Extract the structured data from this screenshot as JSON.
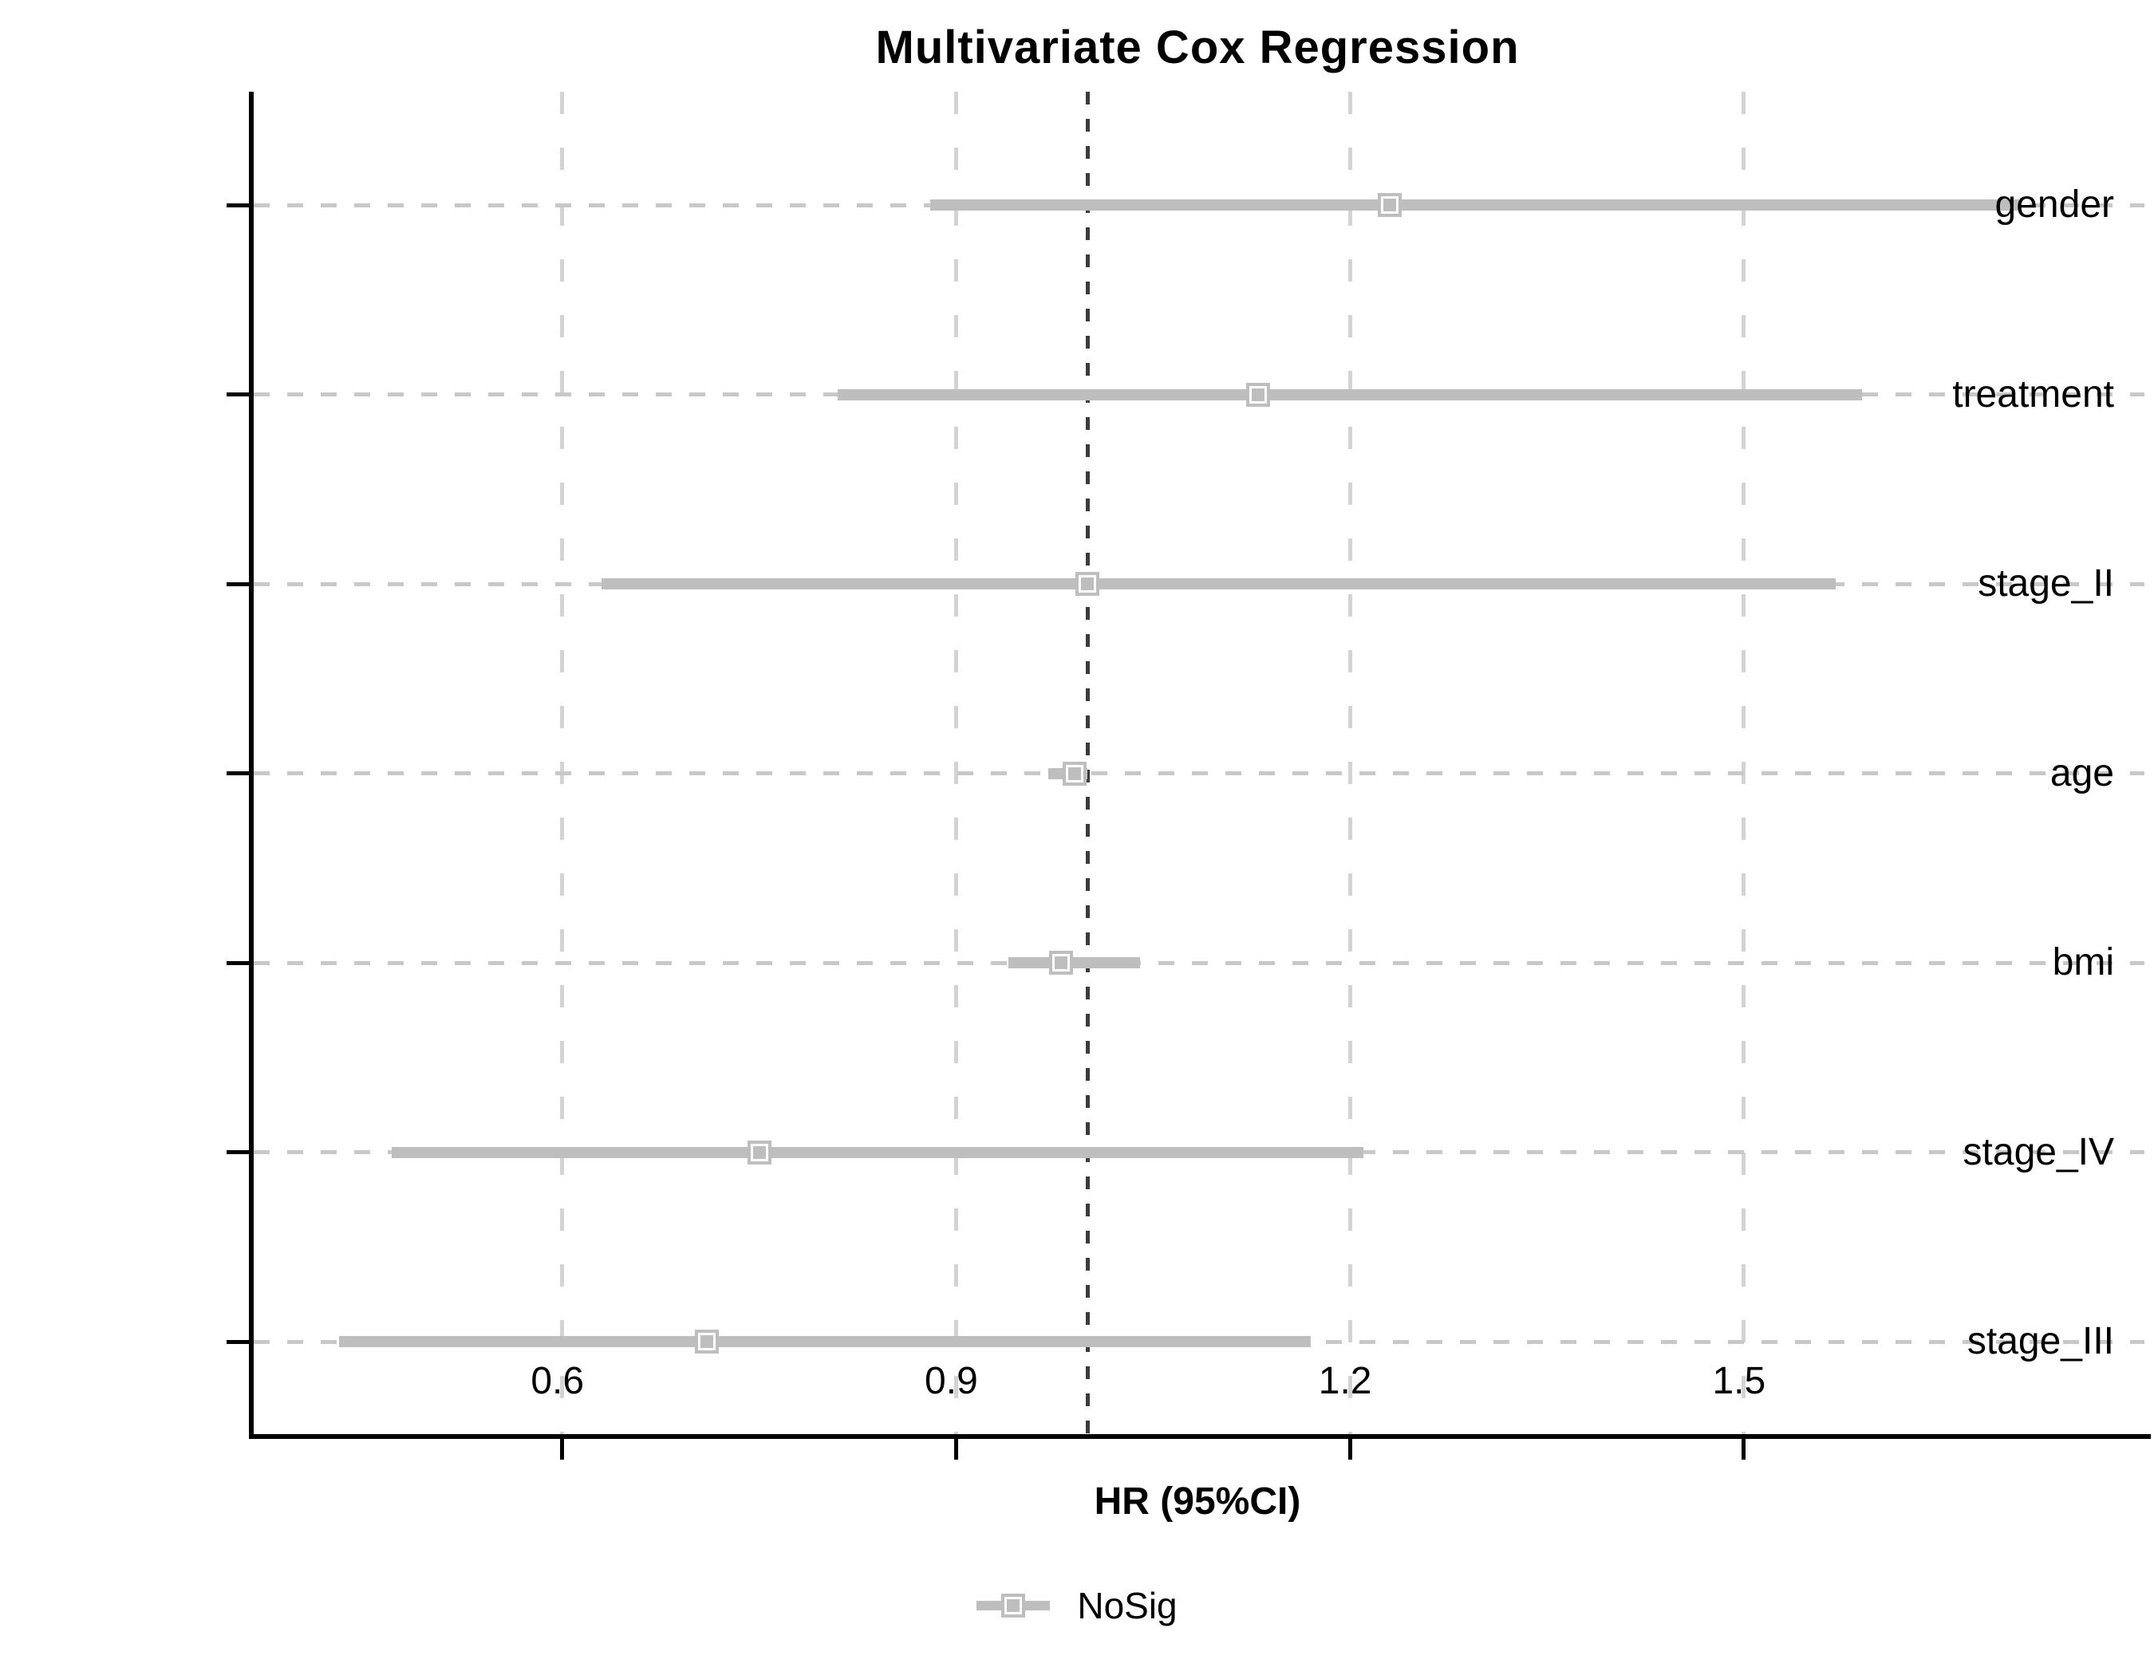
{
  "figure": {
    "title": "Multivariate Cox Regression",
    "x_axis_label": "HR (95%CI)",
    "legend": {
      "label": "NoSig"
    }
  },
  "colors": {
    "estimate_gray": "#bebebe",
    "marker_inner_ring": "#ffffff",
    "row_gridline": "#c8c8c8",
    "tick_gridline": "#d3d3d3",
    "reference_line": "#3c3c3c",
    "axis": "#000000",
    "background": "#ffffff"
  },
  "chart_data": {
    "type": "scatter",
    "variant": "forest_plot",
    "title": "Multivariate Cox Regression",
    "xlabel": "HR (95%CI)",
    "ylabel": "",
    "xlim": [
      0.365,
      1.81
    ],
    "x_ticks": [
      0.6,
      0.9,
      1.2,
      1.5
    ],
    "reference_line": 1.0,
    "grid": "dashed",
    "legend_position": "bottom",
    "categories": [
      "gender",
      "treatment",
      "stage_II",
      "age",
      "bmi",
      "stage_IV",
      "stage_III"
    ],
    "rows": [
      {
        "label": "gender",
        "hr": 1.23,
        "lower": 0.88,
        "upper": 1.71,
        "group": "NoSig"
      },
      {
        "label": "treatment",
        "hr": 1.13,
        "lower": 0.81,
        "upper": 1.59,
        "group": "NoSig"
      },
      {
        "label": "stage_II",
        "hr": 1.0,
        "lower": 0.63,
        "upper": 1.57,
        "group": "NoSig"
      },
      {
        "label": "age",
        "hr": 0.99,
        "lower": 0.97,
        "upper": 1.0,
        "group": "NoSig"
      },
      {
        "label": "bmi",
        "hr": 0.98,
        "lower": 0.94,
        "upper": 1.04,
        "group": "NoSig"
      },
      {
        "label": "stage_IV",
        "hr": 0.75,
        "lower": 0.47,
        "upper": 1.21,
        "group": "NoSig"
      },
      {
        "label": "stage_III",
        "hr": 0.71,
        "lower": 0.43,
        "upper": 1.17,
        "group": "NoSig"
      }
    ],
    "series": [
      {
        "name": "NoSig",
        "hr": [
          1.23,
          1.13,
          1.0,
          0.99,
          0.98,
          0.75,
          0.71
        ],
        "lower": [
          0.88,
          0.81,
          0.63,
          0.97,
          0.94,
          0.47,
          0.43
        ],
        "upper": [
          1.71,
          1.59,
          1.57,
          1.0,
          1.04,
          1.21,
          1.17
        ]
      }
    ]
  }
}
